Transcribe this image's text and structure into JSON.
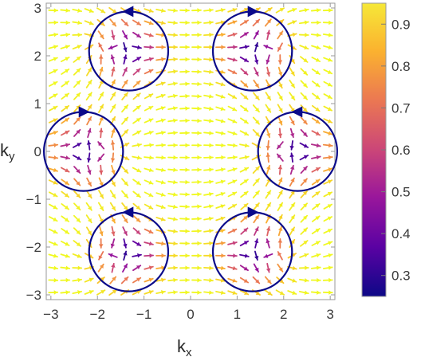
{
  "chart_data": {
    "type": "vector-field",
    "title": "",
    "xlabel": "k",
    "xlabel_sub": "x",
    "ylabel": "k",
    "ylabel_sub": "y",
    "xlim": [
      -3.1,
      3.1
    ],
    "ylim": [
      -3.1,
      3.1
    ],
    "xticks": [
      -3,
      -2,
      -1,
      0,
      1,
      2,
      3
    ],
    "yticks": [
      -3,
      -2,
      -1,
      0,
      1,
      2,
      3
    ],
    "xtick_labels": [
      "−3",
      "−2",
      "−1",
      "0",
      "1",
      "2",
      "3"
    ],
    "ytick_labels": [
      "−3",
      "−2",
      "−1",
      "0",
      "1",
      "2",
      "3"
    ],
    "grid": false,
    "arrow_grid_n": 24,
    "colorbar": {
      "min": 0.25,
      "max": 0.95,
      "ticks": [
        0.3,
        0.4,
        0.5,
        0.6,
        0.7,
        0.8,
        0.9
      ],
      "tick_labels": [
        "0.3",
        "0.4",
        "0.5",
        "0.6",
        "0.7",
        "0.8",
        "0.9"
      ],
      "colors": [
        "#0d0887",
        "#5b02a3",
        "#9a179b",
        "#cb4678",
        "#eb7852",
        "#fbb32f",
        "#f0f921"
      ]
    },
    "singularities": [
      {
        "x": -1.33,
        "y": 2.1,
        "winding": 1,
        "marker_dir": "left"
      },
      {
        "x": 1.33,
        "y": 2.1,
        "winding": -1,
        "marker_dir": "right"
      },
      {
        "x": -2.3,
        "y": 0.0,
        "winding": -1,
        "marker_dir": "right"
      },
      {
        "x": 2.3,
        "y": 0.0,
        "winding": 1,
        "marker_dir": "left"
      },
      {
        "x": -1.33,
        "y": -2.1,
        "winding": 1,
        "marker_dir": "left"
      },
      {
        "x": 1.33,
        "y": -2.1,
        "winding": -1,
        "marker_dir": "right"
      }
    ],
    "circle_radius": 0.85,
    "circle_color": "#0a0a8a"
  }
}
